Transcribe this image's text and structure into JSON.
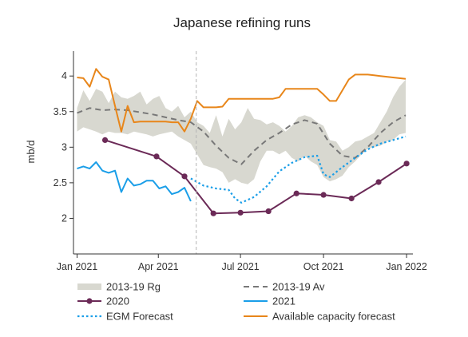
{
  "chart_data": {
    "type": "line",
    "title": "Japanese refining runs",
    "ylabel": "mb/d",
    "xlabel": "",
    "x_range": [
      "2020-12-28",
      "2022-01-08"
    ],
    "ylim": [
      1.5,
      4.35
    ],
    "y_ticks": [
      2,
      2.5,
      3,
      3.5,
      4
    ],
    "y_tick_labels": [
      "2",
      "2.5",
      "3",
      "3.5",
      "4"
    ],
    "x_ticks": [
      "2021-01-01",
      "2021-04-01",
      "2021-07-01",
      "2021-10-01",
      "2022-01-01"
    ],
    "x_tick_labels": [
      "Jan 2021",
      "Apr 2021",
      "Jul 2021",
      "Oct 2021",
      "Jan 2022"
    ],
    "grid": false,
    "forecast_divider_x": "2021-05-13",
    "legend_position": "bottom",
    "series": [
      {
        "name": "2013-19 Rg",
        "kind": "band",
        "color": "#d8d8d0",
        "x": [
          "2021-01-01",
          "2021-01-08",
          "2021-01-15",
          "2021-01-22",
          "2021-01-29",
          "2021-02-05",
          "2021-02-12",
          "2021-02-19",
          "2021-02-26",
          "2021-03-05",
          "2021-03-12",
          "2021-03-19",
          "2021-03-26",
          "2021-04-02",
          "2021-04-09",
          "2021-04-16",
          "2021-04-23",
          "2021-04-30",
          "2021-05-07",
          "2021-05-14",
          "2021-05-21",
          "2021-05-28",
          "2021-06-04",
          "2021-06-11",
          "2021-06-18",
          "2021-06-25",
          "2021-07-02",
          "2021-07-09",
          "2021-07-16",
          "2021-07-23",
          "2021-07-30",
          "2021-08-06",
          "2021-08-13",
          "2021-08-20",
          "2021-08-27",
          "2021-09-03",
          "2021-09-10",
          "2021-09-17",
          "2021-09-24",
          "2021-10-01",
          "2021-10-08",
          "2021-10-15",
          "2021-10-22",
          "2021-10-29",
          "2021-11-05",
          "2021-11-12",
          "2021-11-19",
          "2021-11-26",
          "2021-12-03",
          "2021-12-10",
          "2021-12-17",
          "2021-12-24",
          "2021-12-31"
        ],
        "upper": [
          3.55,
          3.8,
          3.65,
          3.82,
          3.78,
          3.62,
          3.78,
          3.7,
          3.68,
          3.72,
          3.78,
          3.6,
          3.68,
          3.72,
          3.55,
          3.5,
          3.58,
          3.42,
          3.5,
          3.35,
          3.3,
          3.2,
          3.45,
          3.15,
          3.4,
          3.25,
          3.35,
          3.55,
          3.4,
          3.38,
          3.32,
          3.35,
          3.3,
          3.22,
          3.3,
          3.42,
          3.45,
          3.42,
          3.35,
          3.3,
          3.1,
          3.08,
          2.95,
          3.0,
          3.08,
          3.1,
          3.15,
          3.2,
          3.35,
          3.5,
          3.7,
          3.85,
          3.95
        ],
        "lower": [
          3.22,
          3.28,
          3.25,
          3.22,
          3.18,
          3.22,
          3.2,
          3.2,
          3.18,
          3.22,
          3.2,
          3.18,
          3.15,
          3.18,
          3.2,
          3.22,
          3.15,
          3.1,
          3.05,
          2.9,
          2.75,
          2.72,
          2.7,
          2.65,
          2.5,
          2.55,
          2.5,
          2.48,
          2.55,
          2.8,
          2.95,
          2.95,
          2.9,
          2.95,
          2.85,
          2.8,
          2.88,
          2.8,
          2.75,
          2.58,
          2.52,
          2.55,
          2.6,
          2.72,
          2.8,
          2.9,
          2.98,
          3.0,
          3.02,
          3.08,
          3.1,
          3.18,
          3.2
        ]
      },
      {
        "name": "2013-19 Av",
        "kind": "line",
        "dash": true,
        "color": "#787878",
        "x": [
          "2021-01-01",
          "2021-01-15",
          "2021-01-29",
          "2021-02-12",
          "2021-02-26",
          "2021-03-12",
          "2021-03-26",
          "2021-04-09",
          "2021-04-23",
          "2021-05-07",
          "2021-05-21",
          "2021-06-04",
          "2021-06-18",
          "2021-07-02",
          "2021-07-16",
          "2021-07-30",
          "2021-08-13",
          "2021-08-27",
          "2021-09-10",
          "2021-09-24",
          "2021-10-08",
          "2021-10-22",
          "2021-11-05",
          "2021-11-19",
          "2021-12-03",
          "2021-12-17",
          "2021-12-31"
        ],
        "y": [
          3.48,
          3.55,
          3.52,
          3.53,
          3.52,
          3.49,
          3.46,
          3.42,
          3.38,
          3.35,
          3.22,
          3.02,
          2.85,
          2.76,
          2.95,
          3.1,
          3.2,
          3.32,
          3.38,
          3.33,
          3.05,
          2.88,
          2.85,
          3.0,
          3.2,
          3.35,
          3.45
        ]
      },
      {
        "name": "2020",
        "kind": "line",
        "markers": true,
        "color": "#6b2a57",
        "x": [
          "2021-02-01",
          "2021-03-30",
          "2021-04-30",
          "2021-06-01",
          "2021-07-01",
          "2021-08-01",
          "2021-09-01",
          "2021-10-01",
          "2021-11-01",
          "2021-12-01",
          "2022-01-01"
        ],
        "y": [
          3.1,
          2.87,
          2.59,
          2.07,
          2.08,
          2.1,
          2.35,
          2.33,
          2.28,
          2.51,
          2.77
        ]
      },
      {
        "name": "2021",
        "kind": "line",
        "color": "#1a9ee8",
        "x": [
          "2021-01-01",
          "2021-01-08",
          "2021-01-15",
          "2021-01-22",
          "2021-01-29",
          "2021-02-05",
          "2021-02-12",
          "2021-02-19",
          "2021-02-26",
          "2021-03-05",
          "2021-03-12",
          "2021-03-19",
          "2021-03-26",
          "2021-04-02",
          "2021-04-09",
          "2021-04-16",
          "2021-04-23",
          "2021-04-30",
          "2021-05-07"
        ],
        "y": [
          2.7,
          2.73,
          2.7,
          2.79,
          2.67,
          2.64,
          2.67,
          2.37,
          2.56,
          2.46,
          2.48,
          2.53,
          2.53,
          2.42,
          2.45,
          2.34,
          2.37,
          2.43,
          2.24
        ]
      },
      {
        "name": "EGM Forecast",
        "kind": "line",
        "dot": true,
        "color": "#1a9ee8",
        "x": [
          "2021-05-07",
          "2021-05-21",
          "2021-06-04",
          "2021-06-18",
          "2021-06-25",
          "2021-07-02",
          "2021-07-16",
          "2021-07-30",
          "2021-08-13",
          "2021-08-27",
          "2021-09-10",
          "2021-09-24",
          "2021-10-01",
          "2021-10-08",
          "2021-10-22",
          "2021-11-05",
          "2021-11-19",
          "2021-12-03",
          "2021-12-17",
          "2021-12-31"
        ],
        "y": [
          2.56,
          2.46,
          2.42,
          2.4,
          2.28,
          2.22,
          2.3,
          2.45,
          2.66,
          2.78,
          2.86,
          2.88,
          2.62,
          2.58,
          2.72,
          2.85,
          2.97,
          3.05,
          3.1,
          3.15
        ]
      },
      {
        "name": "Available capacity forecast",
        "kind": "line",
        "color": "#e8861a",
        "x": [
          "2021-01-01",
          "2021-01-08",
          "2021-01-15",
          "2021-01-22",
          "2021-01-29",
          "2021-02-05",
          "2021-02-12",
          "2021-02-19",
          "2021-02-26",
          "2021-03-05",
          "2021-03-12",
          "2021-03-19",
          "2021-03-26",
          "2021-04-02",
          "2021-04-09",
          "2021-04-16",
          "2021-04-23",
          "2021-04-30",
          "2021-05-07",
          "2021-05-14",
          "2021-05-21",
          "2021-05-28",
          "2021-06-04",
          "2021-06-11",
          "2021-06-18",
          "2021-06-25",
          "2021-07-02",
          "2021-07-09",
          "2021-07-16",
          "2021-07-23",
          "2021-07-30",
          "2021-08-06",
          "2021-08-13",
          "2021-08-20",
          "2021-08-27",
          "2021-09-03",
          "2021-09-10",
          "2021-09-17",
          "2021-09-24",
          "2021-10-01",
          "2021-10-08",
          "2021-10-15",
          "2021-10-22",
          "2021-10-29",
          "2021-11-05",
          "2021-11-12",
          "2021-11-19",
          "2021-11-26",
          "2021-12-03",
          "2021-12-10",
          "2021-12-17",
          "2021-12-24",
          "2021-12-31"
        ],
        "y": [
          3.98,
          3.97,
          3.85,
          4.1,
          3.99,
          3.95,
          3.58,
          3.22,
          3.58,
          3.35,
          3.36,
          3.36,
          3.36,
          3.36,
          3.36,
          3.35,
          3.35,
          3.22,
          3.4,
          3.65,
          3.56,
          3.56,
          3.56,
          3.57,
          3.68,
          3.68,
          3.68,
          3.68,
          3.68,
          3.68,
          3.68,
          3.68,
          3.7,
          3.82,
          3.82,
          3.82,
          3.82,
          3.82,
          3.82,
          3.74,
          3.65,
          3.65,
          3.8,
          3.95,
          4.02,
          4.02,
          4.02,
          4.01,
          4.0,
          3.99,
          3.98,
          3.97,
          3.96
        ]
      }
    ]
  }
}
